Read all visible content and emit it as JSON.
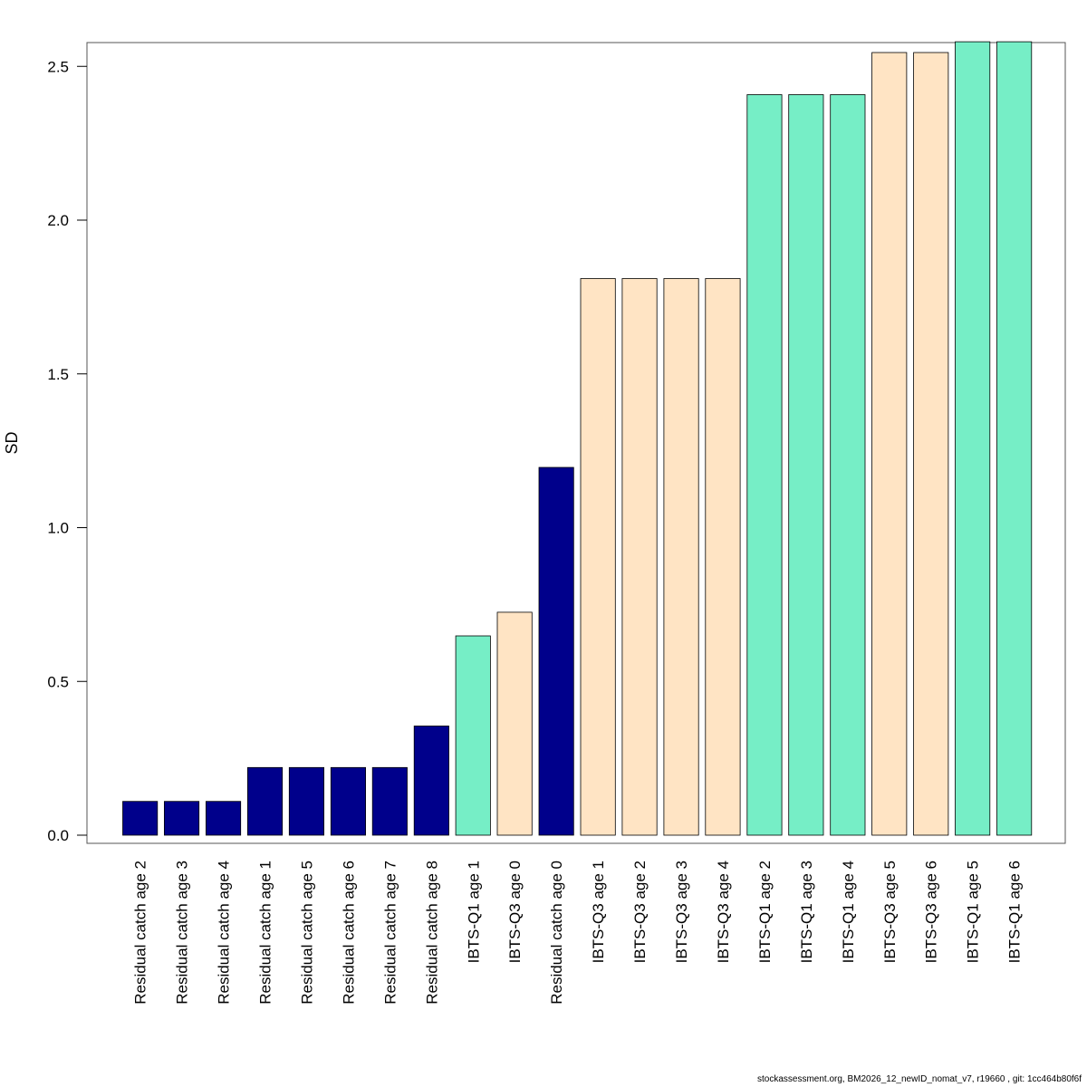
{
  "chart_data": {
    "type": "bar",
    "ylabel": "SD",
    "ylim": [
      0,
      2.58
    ],
    "yticks": [
      "0.0",
      "0.5",
      "1.0",
      "1.5",
      "2.0",
      "2.5"
    ],
    "grid": false,
    "legend": "none",
    "colors": {
      "Residual catch": "#00008B",
      "IBTS-Q1": "#76EEC6",
      "IBTS-Q3": "#FFE4C4"
    },
    "categories": [
      "Residual catch age 2",
      "Residual catch age 3",
      "Residual catch age 4",
      "Residual catch age 1",
      "Residual catch age 5",
      "Residual catch age 6",
      "Residual catch age 7",
      "Residual catch age 8",
      "IBTS-Q1 age 1",
      "IBTS-Q3 age 0",
      "Residual catch age 0",
      "IBTS-Q3 age 1",
      "IBTS-Q3 age 2",
      "IBTS-Q3 age 3",
      "IBTS-Q3 age 4",
      "IBTS-Q1 age 2",
      "IBTS-Q1 age 3",
      "IBTS-Q1 age 4",
      "IBTS-Q3 age 5",
      "IBTS-Q3 age 6",
      "IBTS-Q1 age 5",
      "IBTS-Q1 age 6"
    ],
    "values": [
      0.11,
      0.11,
      0.11,
      0.22,
      0.22,
      0.22,
      0.22,
      0.355,
      0.648,
      0.725,
      1.196,
      1.81,
      1.81,
      1.81,
      1.81,
      2.408,
      2.408,
      2.408,
      2.545,
      2.545,
      2.58,
      2.58
    ],
    "groups": [
      "Residual catch",
      "Residual catch",
      "Residual catch",
      "Residual catch",
      "Residual catch",
      "Residual catch",
      "Residual catch",
      "Residual catch",
      "IBTS-Q1",
      "IBTS-Q3",
      "Residual catch",
      "IBTS-Q3",
      "IBTS-Q3",
      "IBTS-Q3",
      "IBTS-Q3",
      "IBTS-Q1",
      "IBTS-Q1",
      "IBTS-Q1",
      "IBTS-Q3",
      "IBTS-Q3",
      "IBTS-Q1",
      "IBTS-Q1"
    ]
  },
  "footer": "stockassessment.org, BM2026_12_newID_nomat_v7, r19660 , git: 1cc464b80f6f"
}
